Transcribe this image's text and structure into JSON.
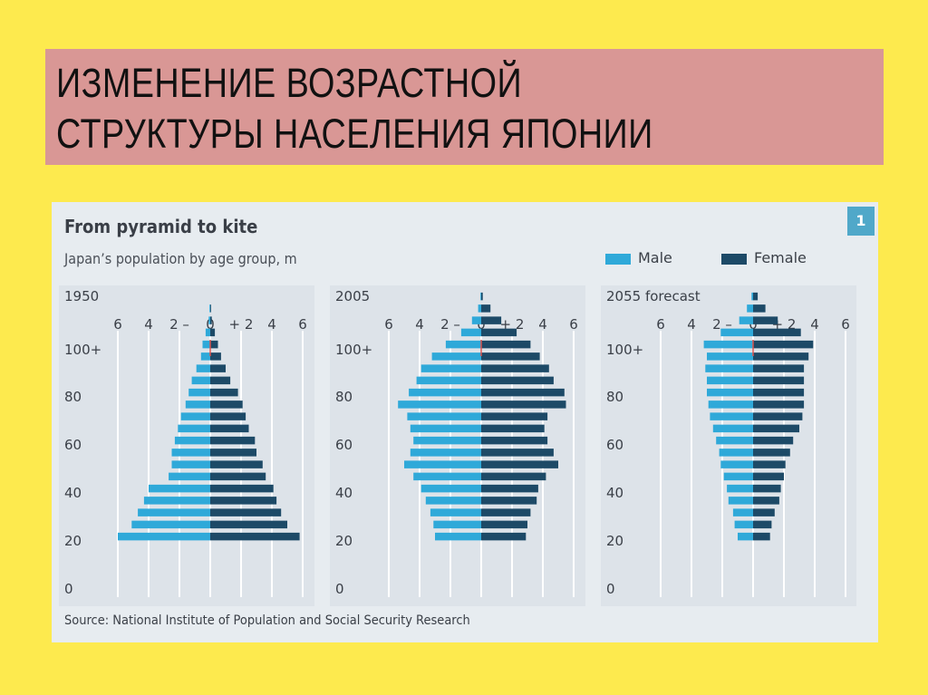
{
  "heading": {
    "line1": "ИЗМЕНЕНИЕ ВОЗРАСТНОЙ",
    "line2": "СТРУКТУРЫ НАСЕЛЕНИЯ ЯПОНИИ"
  },
  "colors": {
    "background": "#fdea4e",
    "title_box": "#d99795",
    "panel": "#e7ecf0",
    "male": "#2fa9d9",
    "female": "#1d4a67",
    "center_line": "#d9534f"
  },
  "chart_title": "From pyramid to kite",
  "chart_subtitle": "Japan’s population by age group, m",
  "chart_number": "1",
  "legend": {
    "male": "Male",
    "female": "Female"
  },
  "source": "Source: National Institute of Population and Social Security Research",
  "chart_data": [
    {
      "type": "bar",
      "title": "1950",
      "x_ticks": [
        "6",
        "4",
        "2 –",
        "0",
        "+ 2",
        "4",
        "6"
      ],
      "xlim": [
        -6,
        6
      ],
      "y_ticks": [
        "100+",
        "80",
        "60",
        "40",
        "20",
        "0"
      ],
      "age_groups": [
        "0",
        "5",
        "10",
        "15",
        "20",
        "25",
        "30",
        "35",
        "40",
        "45",
        "50",
        "55",
        "60",
        "65",
        "70",
        "75",
        "80",
        "85",
        "90",
        "95",
        "100+"
      ],
      "series": [
        {
          "name": "Male",
          "values": [
            6.0,
            5.1,
            4.7,
            4.3,
            4.0,
            2.7,
            2.5,
            2.5,
            2.3,
            2.1,
            1.9,
            1.6,
            1.4,
            1.2,
            0.9,
            0.6,
            0.5,
            0.3,
            0.1,
            0.05,
            0.0
          ]
        },
        {
          "name": "Female",
          "values": [
            5.8,
            5.0,
            4.6,
            4.3,
            4.1,
            3.6,
            3.4,
            3.0,
            2.9,
            2.5,
            2.3,
            2.1,
            1.8,
            1.3,
            1.0,
            0.7,
            0.5,
            0.3,
            0.1,
            0.05,
            0.0
          ]
        }
      ]
    },
    {
      "type": "bar",
      "title": "2005",
      "x_ticks": [
        "6",
        "4",
        "2 –",
        "0",
        "+ 2",
        "4",
        "6"
      ],
      "xlim": [
        -6,
        6
      ],
      "y_ticks": [
        "100+",
        "80",
        "60",
        "40",
        "20",
        "0"
      ],
      "age_groups": [
        "0",
        "5",
        "10",
        "15",
        "20",
        "25",
        "30",
        "35",
        "40",
        "45",
        "50",
        "55",
        "60",
        "65",
        "70",
        "75",
        "80",
        "85",
        "90",
        "95",
        "100+"
      ],
      "series": [
        {
          "name": "Male",
          "values": [
            3.0,
            3.1,
            3.3,
            3.6,
            3.9,
            4.4,
            5.0,
            4.6,
            4.4,
            4.6,
            4.8,
            5.4,
            4.7,
            4.2,
            3.9,
            3.2,
            2.3,
            1.3,
            0.6,
            0.2,
            0.05
          ]
        },
        {
          "name": "Female",
          "values": [
            2.9,
            3.0,
            3.2,
            3.6,
            3.7,
            4.2,
            5.0,
            4.7,
            4.3,
            4.1,
            4.3,
            5.5,
            5.4,
            4.7,
            4.4,
            3.8,
            3.2,
            2.3,
            1.3,
            0.6,
            0.1
          ]
        }
      ]
    },
    {
      "type": "bar",
      "title": "2055 forecast",
      "x_ticks": [
        "6",
        "4",
        "2 –",
        "0",
        "+ 2",
        "4",
        "6"
      ],
      "xlim": [
        -6,
        6
      ],
      "y_ticks": [
        "100+",
        "80",
        "60",
        "40",
        "20",
        "0"
      ],
      "age_groups": [
        "0",
        "5",
        "10",
        "15",
        "20",
        "25",
        "30",
        "35",
        "40",
        "45",
        "50",
        "55",
        "60",
        "65",
        "70",
        "75",
        "80",
        "85",
        "90",
        "95",
        "100+"
      ],
      "series": [
        {
          "name": "Male",
          "values": [
            1.0,
            1.2,
            1.3,
            1.6,
            1.7,
            1.9,
            2.1,
            2.2,
            2.4,
            2.6,
            2.8,
            2.9,
            3.0,
            3.0,
            3.1,
            3.0,
            3.2,
            2.1,
            0.9,
            0.4,
            0.1
          ]
        },
        {
          "name": "Female",
          "values": [
            1.1,
            1.2,
            1.4,
            1.7,
            1.8,
            2.0,
            2.1,
            2.4,
            2.6,
            3.0,
            3.2,
            3.3,
            3.3,
            3.3,
            3.3,
            3.6,
            3.9,
            3.1,
            1.6,
            0.8,
            0.3
          ]
        }
      ]
    }
  ]
}
